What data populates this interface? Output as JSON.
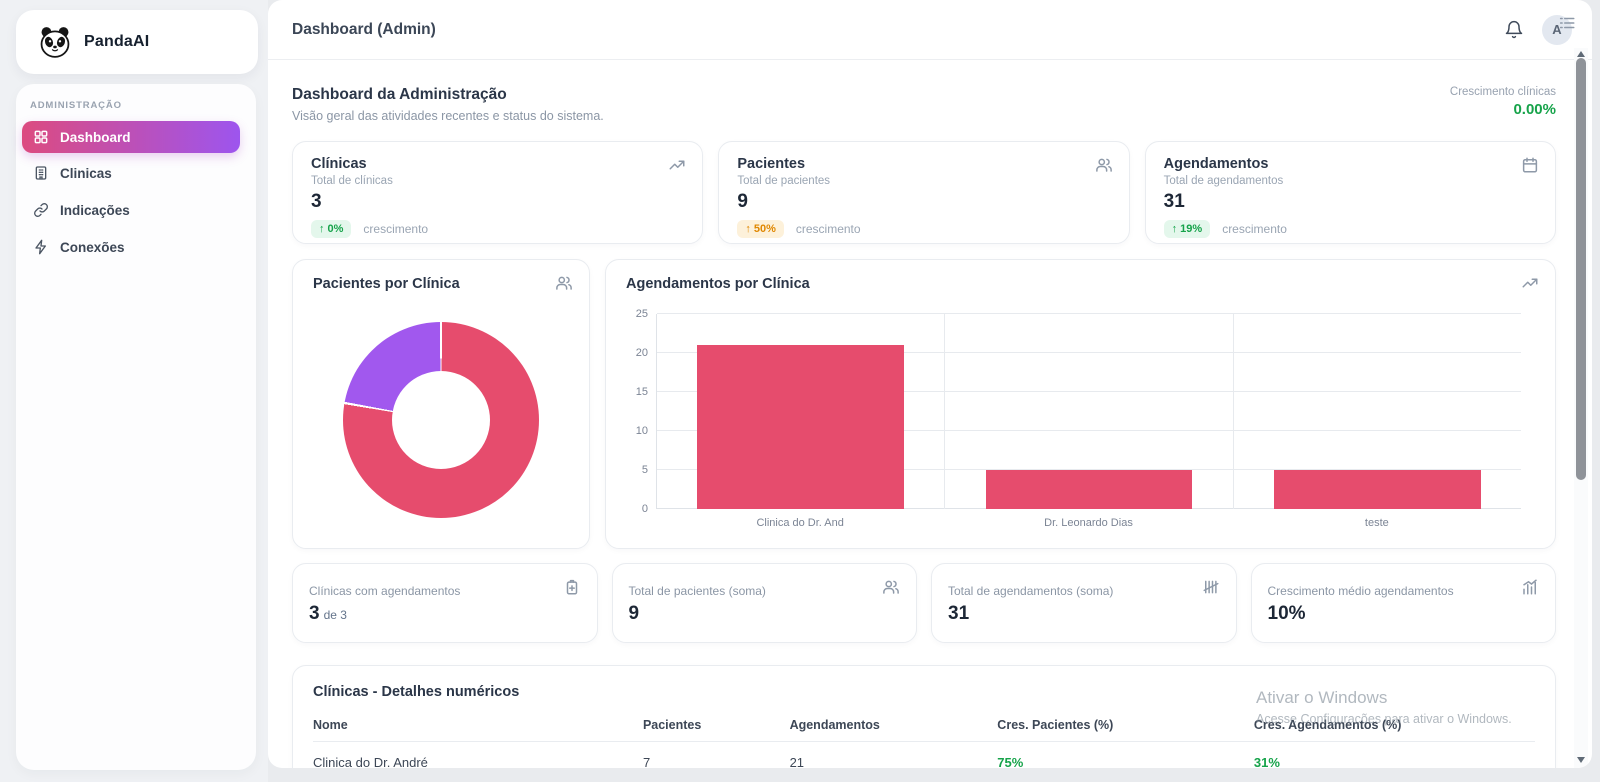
{
  "sidebar": {
    "brand": "PandaAI",
    "section_label": "ADMINISTRAÇÃO",
    "items": [
      {
        "label": "Dashboard",
        "icon": "grid-icon",
        "active": true
      },
      {
        "label": "Clinicas",
        "icon": "building-icon",
        "active": false
      },
      {
        "label": "Indicações",
        "icon": "link-icon",
        "active": false
      },
      {
        "label": "Conexões",
        "icon": "zap-icon",
        "active": false
      }
    ]
  },
  "topbar": {
    "title": "Dashboard (Admin)",
    "avatar_initial": "A"
  },
  "header": {
    "title": "Dashboard da Administração",
    "subtitle": "Visão geral das atividades recentes e status do sistema.",
    "growth_label": "Crescimento clínicas",
    "growth_value": "0.00%"
  },
  "stat_cards": [
    {
      "title": "Clínicas",
      "subtitle": "Total de clínicas",
      "value": "3",
      "arrow": "↑",
      "pct": "0%",
      "note": "crescimento",
      "icon": "trending-up-icon",
      "badge_color": "green"
    },
    {
      "title": "Pacientes",
      "subtitle": "Total de pacientes",
      "value": "9",
      "arrow": "↑",
      "pct": "50%",
      "note": "crescimento",
      "icon": "users-icon",
      "badge_color": "orange"
    },
    {
      "title": "Agendamentos",
      "subtitle": "Total de agendamentos",
      "value": "31",
      "arrow": "↑",
      "pct": "19%",
      "note": "crescimento",
      "icon": "calendar-icon",
      "badge_color": "green"
    }
  ],
  "chart_data": [
    {
      "type": "pie",
      "title": "Pacientes por Clínica",
      "donut": true,
      "values": [
        7,
        2
      ],
      "colors": [
        "#e64c6d",
        "#a158ee"
      ],
      "legend_position": "none"
    },
    {
      "type": "bar",
      "title": "Agendamentos por Clínica",
      "categories": [
        "Clinica do Dr. And",
        "Dr. Leonardo Dias",
        "teste"
      ],
      "values": [
        21,
        5,
        5
      ],
      "bar_color": "#e64c6d",
      "ylim": [
        0,
        25
      ],
      "yticks": [
        0,
        5,
        10,
        15,
        20,
        25
      ],
      "grid": true,
      "xlabel": "",
      "ylabel": ""
    }
  ],
  "mini_cards": [
    {
      "label": "Clínicas com agendamentos",
      "value": "3",
      "suffix": "de 3",
      "icon": "clinic-plus-icon"
    },
    {
      "label": "Total de pacientes (soma)",
      "value": "9",
      "suffix": "",
      "icon": "users-icon"
    },
    {
      "label": "Total de agendamentos (soma)",
      "value": "31",
      "suffix": "",
      "icon": "tally-icon"
    },
    {
      "label": "Crescimento médio agendamentos",
      "value": "10%",
      "suffix": "",
      "icon": "chart-growth-icon"
    }
  ],
  "table": {
    "title": "Clínicas - Detalhes numéricos",
    "columns": [
      "Nome",
      "Pacientes",
      "Agendamentos",
      "Cres. Pacientes (%)",
      "Cres. Agendamentos (%)"
    ],
    "rows": [
      [
        "Clinica do Dr. André",
        "7",
        "21",
        "75%",
        "31%"
      ]
    ]
  },
  "watermark": {
    "line1": "Ativar o Windows",
    "line2": "Acesse Configurações para ativar o Windows."
  },
  "colors": {
    "accent_pink": "#e64c6d",
    "accent_purple": "#a158ee",
    "positive_green": "#16a34a",
    "warning_orange": "#e08700",
    "active_gradient_start": "#dc4b80",
    "active_gradient_end": "#9d55ee"
  }
}
